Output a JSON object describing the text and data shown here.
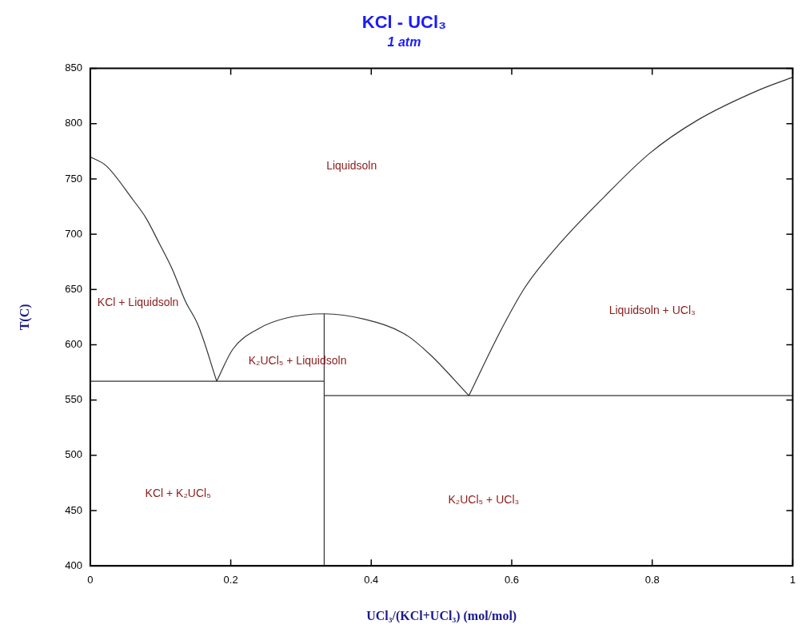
{
  "chart_data": {
    "type": "line",
    "title": "KCl - UCl₃",
    "subtitle": "1 atm",
    "xlabel": "UCl₃/(KCl+UCl₃) (mol/mol)",
    "ylabel": "T(C)",
    "xlim": [
      0,
      1
    ],
    "xticks": [
      0,
      0.2,
      0.4,
      0.6,
      0.8,
      1
    ],
    "ylim": [
      400,
      850
    ],
    "yticks": [
      400,
      450,
      500,
      550,
      600,
      650,
      700,
      750,
      800,
      850
    ],
    "grid": false,
    "legend": false,
    "marker": "none",
    "line_style": "solid",
    "series": [
      {
        "color": "#333333",
        "x": [
          0,
          0.0225,
          0.061,
          0.079,
          0.098,
          0.117,
          0.135,
          0.154,
          0.18
        ],
        "values": [
          770,
          762,
          731,
          715,
          692,
          668,
          640,
          617,
          567
        ]
      },
      {
        "color": "#333333",
        "x": [
          0.18,
          0.203,
          0.241,
          0.278,
          0.333,
          0.391,
          0.447,
          0.484,
          0.539
        ],
        "values": [
          567,
          596,
          615,
          624,
          628,
          623,
          610,
          591,
          554
        ]
      },
      {
        "color": "#333333",
        "x": [
          0.539,
          0.582,
          0.619,
          0.669,
          0.732,
          0.796,
          0.864,
          0.954,
          1
        ],
        "values": [
          554,
          610,
          652,
          692,
          734,
          773,
          803,
          831,
          842
        ]
      },
      {
        "color": "#333333",
        "x": [
          0,
          0.333
        ],
        "values": [
          567,
          567
        ]
      },
      {
        "color": "#333333",
        "x": [
          0.333,
          1
        ],
        "values": [
          554,
          554
        ]
      },
      {
        "color": "#333333",
        "x": [
          0.333,
          0.333
        ],
        "values": [
          400,
          628
        ]
      }
    ],
    "annotations": [
      "Liquidsoln",
      "KCl + Liquidsoln",
      "K₂UCl₅ + Liquidsoln",
      "Liquidsoln + UCl₃",
      "KCl + K₂UCl₅",
      "K₂UCl₅ + UCl₃"
    ]
  }
}
